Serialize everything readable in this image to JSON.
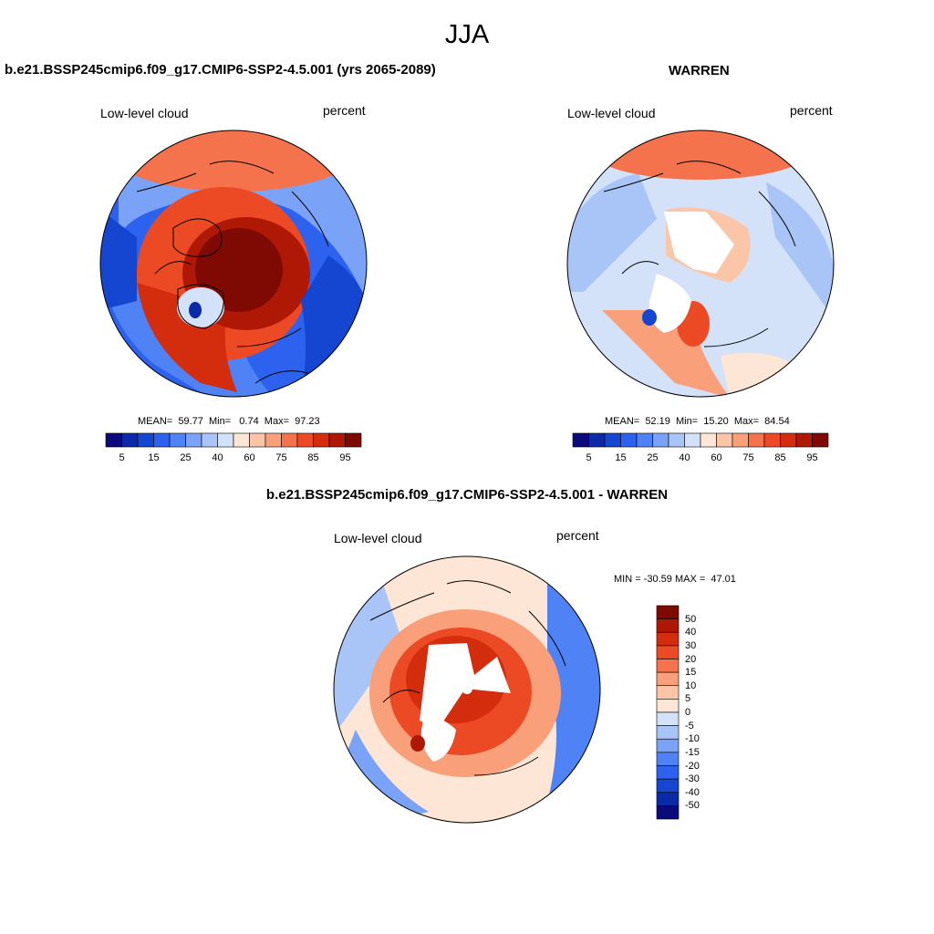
{
  "header": {
    "season": "JJA",
    "panel1_title": "b.e21.BSSP245cmip6.f09_g17.CMIP6-SSP2-4.5.001 (yrs 2065-2089)",
    "panel2_title": "WARREN",
    "panel3_title": "b.e21.BSSP245cmip6.f09_g17.CMIP6-SSP2-4.5.001 - WARREN"
  },
  "panels": [
    {
      "variable": "Low-level cloud",
      "units": "percent",
      "stats": "MEAN=  59.77  Min=   0.74  Max=  97.23",
      "stats_values": {
        "mean": 59.77,
        "min": 0.74,
        "max": 97.23
      }
    },
    {
      "variable": "Low-level cloud",
      "units": "percent",
      "stats": "MEAN=  52.19  Min=  15.20  Max=  84.54",
      "stats_values": {
        "mean": 52.19,
        "min": 15.2,
        "max": 84.54
      }
    },
    {
      "variable": "Low-level cloud",
      "units": "percent",
      "stats": "MIN = -30.59 MAX =  47.01",
      "stats_values": {
        "min": -30.59,
        "max": 47.01
      }
    }
  ],
  "colorbar_abs": {
    "colors": [
      "#0a0a7a",
      "#0a2aa8",
      "#1446d2",
      "#2d62ef",
      "#4f82f5",
      "#7aa3f7",
      "#a9c4f7",
      "#d3e2f8",
      "#fde6d5",
      "#fbc6a8",
      "#f9a07a",
      "#f4734c",
      "#eb4a25",
      "#d42d0e",
      "#b01806",
      "#7e0a03"
    ],
    "ticks": [
      "5",
      "15",
      "25",
      "40",
      "60",
      "75",
      "85",
      "95"
    ]
  },
  "colorbar_diff": {
    "colors": [
      "#7e0a03",
      "#b01806",
      "#d42d0e",
      "#eb4a25",
      "#f4734c",
      "#f9a07a",
      "#fbc6a8",
      "#fde6d5",
      "#d3e2f8",
      "#a9c4f7",
      "#7aa3f7",
      "#4f82f5",
      "#2d62ef",
      "#1446d2",
      "#0a2aa8",
      "#0a0a7a"
    ],
    "ticks": [
      "50",
      "40",
      "30",
      "20",
      "15",
      "10",
      "5",
      "0",
      "-5",
      "-10",
      "-15",
      "-20",
      "-30",
      "-40",
      "-50"
    ]
  }
}
